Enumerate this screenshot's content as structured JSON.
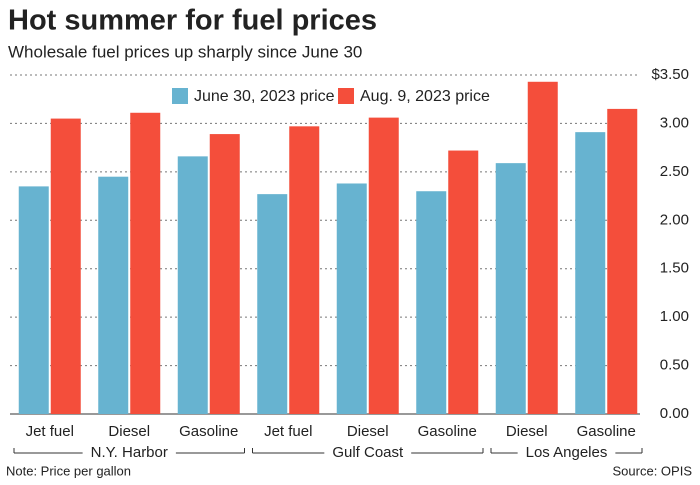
{
  "chart_data": {
    "type": "bar",
    "title": "Hot summer for fuel prices",
    "subtitle": "Wholesale fuel prices up sharply since June 30",
    "groups": [
      {
        "label": "N.Y. Harbor",
        "categories": [
          "Jet fuel",
          "Diesel",
          "Gasoline"
        ]
      },
      {
        "label": "Gulf Coast",
        "categories": [
          "Jet fuel",
          "Diesel",
          "Gasoline"
        ]
      },
      {
        "label": "Los Angeles",
        "categories": [
          "Diesel",
          "Gasoline"
        ]
      }
    ],
    "series": [
      {
        "name": "June 30, 2023 price",
        "color": "#67b3d0",
        "values": [
          2.35,
          2.45,
          2.66,
          2.27,
          2.38,
          2.3,
          2.59,
          2.91
        ]
      },
      {
        "name": "Aug. 9, 2023 price",
        "color": "#f44e3b",
        "values": [
          3.05,
          3.11,
          2.89,
          2.97,
          3.06,
          2.72,
          3.43,
          3.15
        ]
      }
    ],
    "ylim": [
      0,
      3.5
    ],
    "yticks": [
      {
        "value": 0,
        "label": "0.00"
      },
      {
        "value": 0.5,
        "label": "0.50"
      },
      {
        "value": 1,
        "label": "1.00"
      },
      {
        "value": 1.5,
        "label": "1.50"
      },
      {
        "value": 2,
        "label": "2.00"
      },
      {
        "value": 2.5,
        "label": "2.50"
      },
      {
        "value": 3,
        "label": "3.00"
      },
      {
        "value": 3.5,
        "label": "$3.50"
      }
    ],
    "grid": true,
    "note": "Note: Price per gallon",
    "source": "Source: OPIS"
  }
}
